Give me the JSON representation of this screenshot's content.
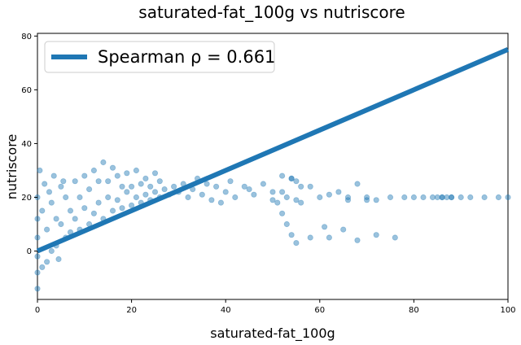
{
  "chart_data": {
    "type": "scatter",
    "title": "saturated-fat_100g vs nutriscore",
    "xlabel": "saturated-fat_100g",
    "ylabel": "nutriscore",
    "xlim": [
      0,
      100
    ],
    "ylim": [
      -18,
      81
    ],
    "xticks": [
      "0",
      "20",
      "40",
      "60",
      "80",
      "100"
    ],
    "yticks": [
      "0",
      "20",
      "40",
      "60",
      "80"
    ],
    "grid": false,
    "legend_position": "upper-left",
    "colors": {
      "series": "#1f77b4"
    },
    "series": [
      {
        "name": "Spearman ρ = 0.661",
        "kind": "line",
        "x": [
          0,
          100
        ],
        "y": [
          0,
          75
        ]
      }
    ],
    "scatter_points": {
      "x": [
        0,
        0,
        0,
        0,
        0,
        0,
        0.5,
        1,
        1,
        1.5,
        2,
        2,
        2.5,
        3,
        3,
        3.5,
        4,
        4,
        4.5,
        5,
        5,
        5.5,
        6,
        6,
        7,
        7,
        8,
        8,
        9,
        9,
        10,
        10,
        11,
        11,
        12,
        12,
        13,
        13,
        14,
        14,
        15,
        15,
        16,
        16,
        17,
        17,
        18,
        18,
        19,
        19,
        20,
        20,
        21,
        21,
        22,
        22,
        23,
        23,
        24,
        24,
        25,
        25,
        26,
        26,
        27,
        28,
        29,
        30,
        31,
        32,
        33,
        34,
        35,
        36,
        37,
        38,
        39,
        40,
        41,
        42,
        44,
        45,
        46,
        48,
        50,
        52,
        53,
        54,
        55,
        56,
        58,
        60,
        62,
        64,
        66,
        68,
        70,
        72,
        75,
        78,
        80,
        82,
        84,
        86,
        88,
        90,
        92,
        95,
        98,
        100,
        52,
        54,
        55,
        56,
        58,
        61,
        66,
        70,
        87,
        88,
        86,
        85,
        55,
        54,
        53,
        52,
        51,
        50,
        62,
        65,
        68,
        72,
        76
      ],
      "y": [
        -14,
        -8,
        -2,
        5,
        12,
        20,
        30,
        -6,
        15,
        25,
        -4,
        8,
        22,
        0,
        18,
        28,
        2,
        12,
        -3,
        10,
        24,
        26,
        5,
        20,
        7,
        15,
        12,
        26,
        8,
        20,
        16,
        28,
        10,
        23,
        14,
        30,
        18,
        26,
        12,
        33,
        20,
        26,
        15,
        31,
        19,
        28,
        16,
        24,
        22,
        29,
        17,
        24,
        20,
        30,
        18,
        25,
        21,
        27,
        19,
        24,
        22,
        29,
        20,
        26,
        23,
        21,
        24,
        22,
        25,
        20,
        23,
        27,
        21,
        25,
        19,
        24,
        18,
        22,
        26,
        20,
        24,
        23,
        21,
        25,
        19,
        22,
        20,
        27,
        26,
        18,
        24,
        20,
        21,
        22,
        19,
        25,
        20,
        19,
        20,
        20,
        20,
        20,
        20,
        20,
        20,
        20,
        20,
        20,
        20,
        20,
        28,
        27,
        19,
        24,
        5,
        9,
        20,
        19,
        20,
        20,
        20,
        20,
        3,
        6,
        10,
        14,
        18,
        22,
        5,
        8,
        4,
        6,
        5
      ]
    }
  }
}
